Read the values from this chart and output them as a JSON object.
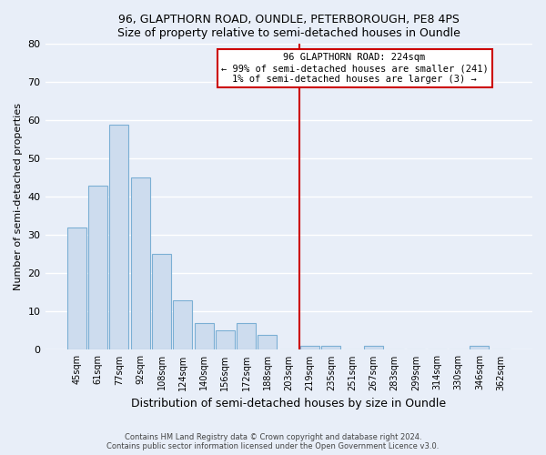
{
  "title1": "96, GLAPTHORN ROAD, OUNDLE, PETERBOROUGH, PE8 4PS",
  "title2": "Size of property relative to semi-detached houses in Oundle",
  "xlabel": "Distribution of semi-detached houses by size in Oundle",
  "ylabel": "Number of semi-detached properties",
  "bar_labels": [
    "45sqm",
    "61sqm",
    "77sqm",
    "92sqm",
    "108sqm",
    "124sqm",
    "140sqm",
    "156sqm",
    "172sqm",
    "188sqm",
    "203sqm",
    "219sqm",
    "235sqm",
    "251sqm",
    "267sqm",
    "283sqm",
    "299sqm",
    "314sqm",
    "330sqm",
    "346sqm",
    "362sqm"
  ],
  "bar_values": [
    32,
    43,
    59,
    45,
    25,
    13,
    7,
    5,
    7,
    4,
    0,
    1,
    1,
    0,
    1,
    0,
    0,
    0,
    0,
    1,
    0
  ],
  "bar_color": "#cddcee",
  "bar_edge_color": "#7bafd4",
  "annotation_title": "96 GLAPTHORN ROAD: 224sqm",
  "annotation_line1": "← 99% of semi-detached houses are smaller (241)",
  "annotation_line2": "1% of semi-detached houses are larger (3) →",
  "annotation_box_color": "white",
  "annotation_box_edge": "#cc0000",
  "vline_color": "#cc0000",
  "ylim": [
    0,
    80
  ],
  "yticks": [
    0,
    10,
    20,
    30,
    40,
    50,
    60,
    70,
    80
  ],
  "footer1": "Contains HM Land Registry data © Crown copyright and database right 2024.",
  "footer2": "Contains public sector information licensed under the Open Government Licence v3.0.",
  "bg_color": "#e8eef8",
  "grid_color": "white",
  "vline_x": 10.5
}
